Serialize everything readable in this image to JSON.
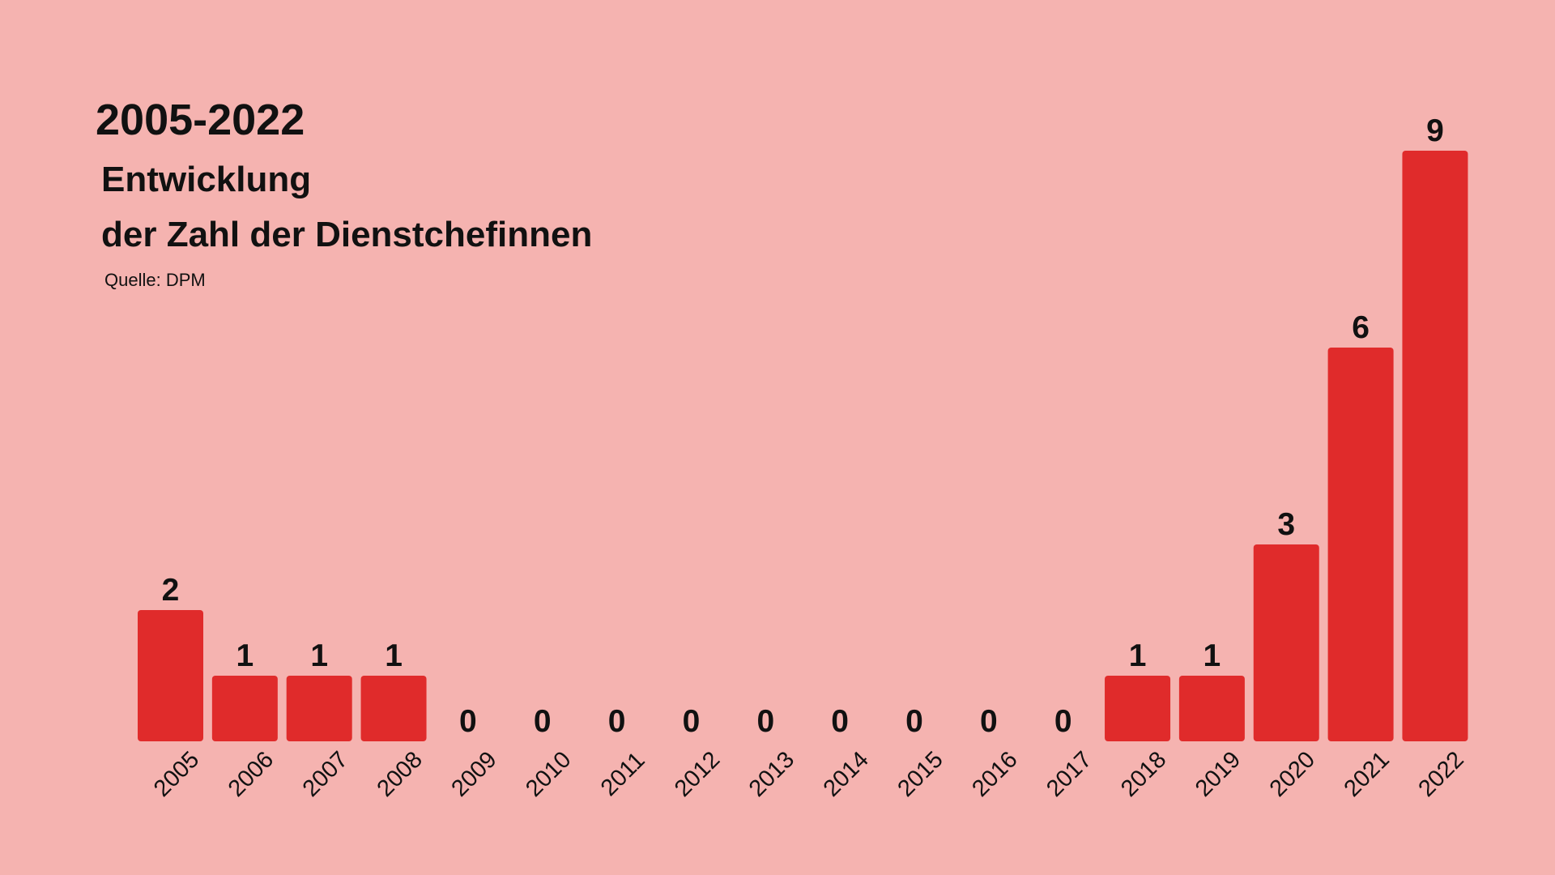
{
  "chart_data": {
    "type": "bar",
    "title": "2005-2022",
    "subtitle": [
      "Entwicklung",
      "der Zahl der Dienstchefinnen"
    ],
    "source": "Quelle: DPM",
    "categories": [
      "2005",
      "2006",
      "2007",
      "2008",
      "2009",
      "2010",
      "2011",
      "2012",
      "2013",
      "2014",
      "2015",
      "2016",
      "2017",
      "2018",
      "2019",
      "2020",
      "2021",
      "2022"
    ],
    "values": [
      2,
      1,
      1,
      1,
      0,
      0,
      0,
      0,
      0,
      0,
      0,
      0,
      0,
      1,
      1,
      3,
      6,
      9
    ],
    "color": "#e02b2b",
    "background": "#f5b3b0"
  }
}
